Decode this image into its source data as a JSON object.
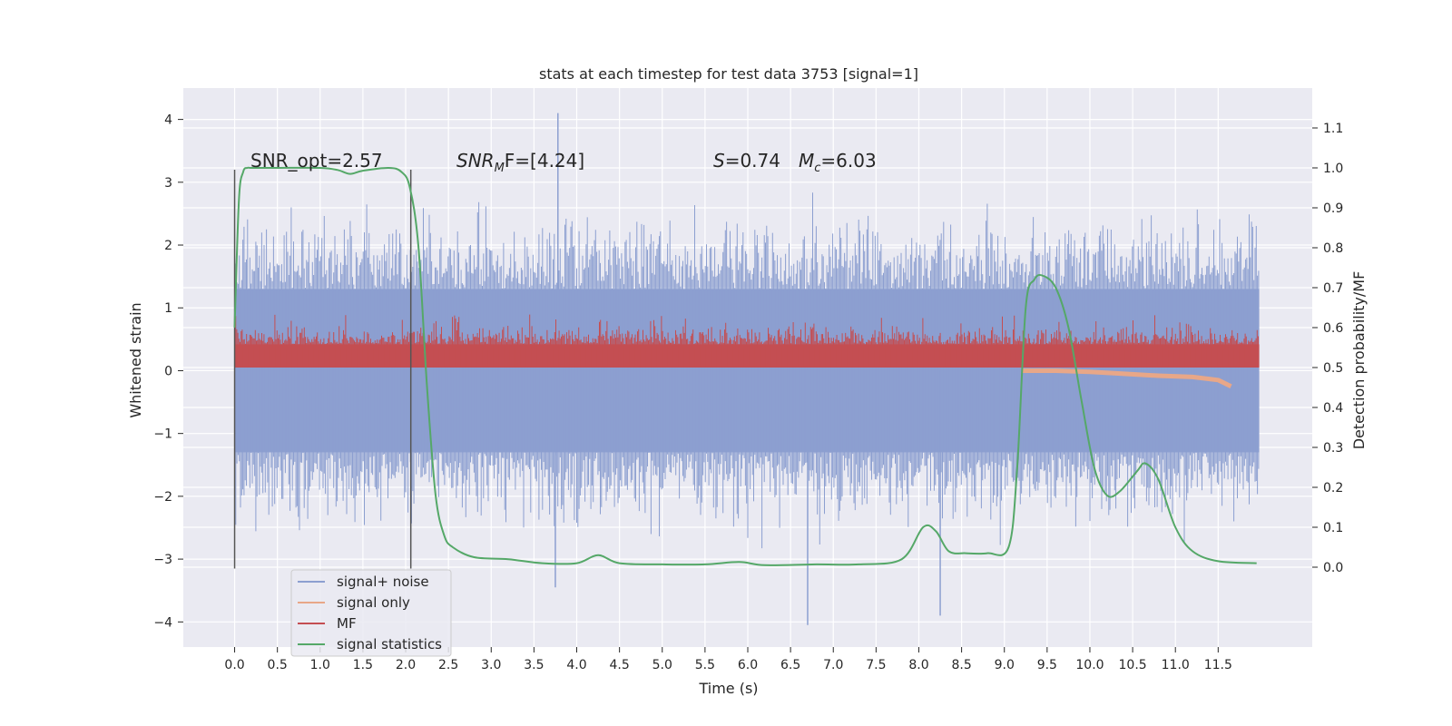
{
  "chart_data": {
    "type": "line",
    "title": "stats at each timestep for test data 3753 [signal=1]",
    "xlabel": "Time (s)",
    "ylabel": "Whitened strain",
    "ylabel_right": "Detection probability/MF",
    "xlim": [
      -0.6,
      12.6
    ],
    "ylim": [
      -4.4,
      4.5
    ],
    "ylim_right": [
      -0.2,
      1.2
    ],
    "x_ticks": [
      "0.0",
      "0.5",
      "1.0",
      "1.5",
      "2.0",
      "2.5",
      "3.0",
      "3.5",
      "4.0",
      "4.5",
      "5.0",
      "5.5",
      "6.0",
      "6.5",
      "7.0",
      "7.5",
      "8.0",
      "8.5",
      "9.0",
      "9.5",
      "10.0",
      "10.5",
      "11.0",
      "11.5"
    ],
    "y_ticks": [
      "4",
      "3",
      "2",
      "1",
      "0",
      "−1",
      "−2",
      "−3",
      "−4"
    ],
    "y_ticks_right": [
      "1.1",
      "1.0",
      "0.9",
      "0.8",
      "0.7",
      "0.6",
      "0.5",
      "0.4",
      "0.3",
      "0.2",
      "0.1",
      "0.0"
    ],
    "grid": true,
    "legend_position": "lower-left",
    "annotations": {
      "snr_opt": "SNR_opt=2.57",
      "snr_mf_main": "SNR",
      "snr_mf_sub": "M",
      "snr_mf_rest": "F=[4.24]",
      "s_label": "S",
      "s_value": "=0.74",
      "mc_label": "M",
      "mc_sub": "c",
      "mc_value": "=6.03"
    },
    "vertical_lines": [
      0.0,
      2.06
    ],
    "series": [
      {
        "name": "signal+ noise",
        "color": "#8c9fd0",
        "axis": "left",
        "style": "noise band",
        "x_range": [
          0.0,
          11.98
        ],
        "core_range": [
          -1.3,
          1.3
        ],
        "typical_peaks": [
          -2.9,
          2.9
        ],
        "extreme_points": [
          {
            "x": 3.78,
            "y": 4.1
          },
          {
            "x": 6.7,
            "y": -4.05
          },
          {
            "x": 3.75,
            "y": -3.45
          },
          {
            "x": 8.25,
            "y": -3.9
          }
        ]
      },
      {
        "name": "signal only",
        "color": "#e8a788",
        "axis": "left",
        "x": [
          9.2,
          9.6,
          10.0,
          10.4,
          10.8,
          11.2,
          11.5,
          11.65
        ],
        "y": [
          0.0,
          0.0,
          -0.02,
          -0.05,
          -0.08,
          -0.1,
          -0.15,
          -0.25
        ]
      },
      {
        "name": "MF",
        "color": "#c44e52",
        "axis": "left",
        "style": "noise band",
        "x_range": [
          0.0,
          11.98
        ],
        "band_range": [
          0.05,
          0.6
        ],
        "max_peak": 0.9
      },
      {
        "name": "signal statistics",
        "color": "#55a868",
        "axis": "right",
        "x": [
          0.0,
          0.05,
          0.1,
          0.15,
          0.2,
          0.5,
          1.0,
          1.2,
          1.35,
          1.5,
          1.8,
          1.95,
          2.05,
          2.15,
          2.25,
          2.35,
          2.45,
          2.55,
          2.8,
          3.2,
          3.6,
          4.0,
          4.25,
          4.5,
          5.0,
          5.5,
          5.9,
          6.2,
          6.8,
          7.3,
          7.8,
          8.05,
          8.2,
          8.35,
          8.55,
          8.8,
          9.05,
          9.15,
          9.25,
          9.35,
          9.45,
          9.6,
          9.75,
          9.9,
          10.05,
          10.2,
          10.35,
          10.55,
          10.65,
          10.8,
          11.0,
          11.2,
          11.5,
          11.95
        ],
        "y": [
          0.6,
          0.92,
          0.99,
          1.0,
          1.0,
          1.0,
          1.0,
          0.995,
          0.985,
          0.993,
          1.0,
          0.99,
          0.95,
          0.8,
          0.45,
          0.18,
          0.08,
          0.05,
          0.025,
          0.02,
          0.01,
          0.01,
          0.03,
          0.01,
          0.007,
          0.007,
          0.013,
          0.005,
          0.007,
          0.007,
          0.02,
          0.1,
          0.09,
          0.04,
          0.035,
          0.035,
          0.05,
          0.25,
          0.65,
          0.72,
          0.73,
          0.7,
          0.6,
          0.42,
          0.25,
          0.18,
          0.19,
          0.24,
          0.26,
          0.22,
          0.1,
          0.04,
          0.015,
          0.01
        ]
      }
    ]
  }
}
